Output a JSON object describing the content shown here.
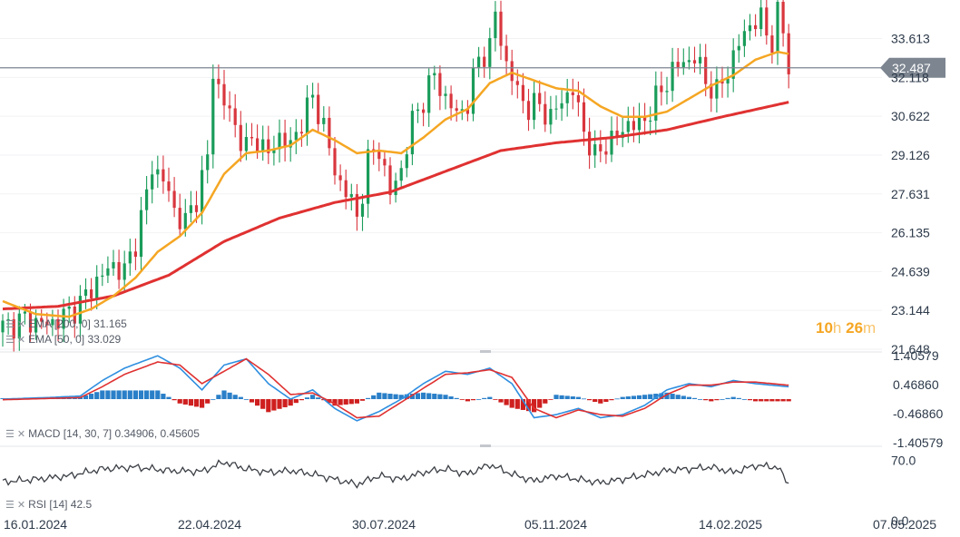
{
  "price_axis": [
    "33.613",
    "32.118",
    "30.622",
    "29.126",
    "27.631",
    "26.135",
    "24.639",
    "23.144",
    "21.648"
  ],
  "current_price": "32.487",
  "macd_axis": [
    "1.40579",
    "0.46860",
    "-0.46860",
    "-1.40579"
  ],
  "rsi_axis": [
    "70.0",
    "0.0"
  ],
  "x_labels": [
    "16.01.2024",
    "22.04.2024",
    "30.07.2024",
    "05.11.2024",
    "14.02.2025",
    "07.05.2025"
  ],
  "legend": {
    "ema200": "EMA [200, 0] 31.165",
    "ema50": "EMA [50, 0] 33.029",
    "macd": "MACD [14, 30, 7] 0.34906,  0.45605",
    "rsi": "RSI [14] 42.5"
  },
  "timer": {
    "hours": "10",
    "h": "h",
    "minutes": "26",
    "m": "m"
  },
  "colors": {
    "ema50": "#f5a623",
    "ema200": "#e03131",
    "bull": "#1a9c5a",
    "bear": "#d9363e",
    "macd_line": "#2f8fe0",
    "signal_line": "#e03131",
    "hist_pos": "#2a7fc8",
    "hist_neg": "#cf1f1f",
    "price_tag": "#7c8590"
  },
  "chart_data": {
    "type": "line",
    "x_ticks": [
      "16.01.2024",
      "22.04.2024",
      "30.07.2024",
      "05.11.2024",
      "14.02.2025",
      "07.05.2025"
    ],
    "price_panel": {
      "ylim": [
        21.648,
        35.1
      ],
      "ticks": [
        33.613,
        32.118,
        30.622,
        29.126,
        27.631,
        26.135,
        24.639,
        23.144,
        21.648
      ],
      "current": 32.487,
      "candle_close_path": [
        [
          0,
          22.5
        ],
        [
          4,
          22.8
        ],
        [
          8,
          22.6
        ],
        [
          11,
          22.9
        ],
        [
          14,
          23.4
        ],
        [
          17,
          24.3
        ],
        [
          20,
          24.9
        ],
        [
          22,
          24.6
        ],
        [
          24,
          25.8
        ],
        [
          26,
          27.6
        ],
        [
          27,
          28.7
        ],
        [
          29,
          28.2
        ],
        [
          31,
          27.0
        ],
        [
          33,
          26.5
        ],
        [
          35,
          27.5
        ],
        [
          37,
          29.0
        ],
        [
          38,
          32.3
        ],
        [
          40,
          31.2
        ],
        [
          42,
          30.2
        ],
        [
          44,
          29.4
        ],
        [
          46,
          29.8
        ],
        [
          48,
          29.1
        ],
        [
          50,
          29.9
        ],
        [
          52,
          29.4
        ],
        [
          54,
          30.5
        ],
        [
          56,
          31.3
        ],
        [
          58,
          30.3
        ],
        [
          60,
          28.4
        ],
        [
          62,
          27.8
        ],
        [
          64,
          26.7
        ],
        [
          66,
          28.9
        ],
        [
          68,
          29.4
        ],
        [
          70,
          27.6
        ],
        [
          72,
          28.6
        ],
        [
          74,
          30.4
        ],
        [
          76,
          31.3
        ],
        [
          78,
          32.2
        ],
        [
          80,
          31.3
        ],
        [
          82,
          30.7
        ],
        [
          84,
          31.1
        ],
        [
          86,
          32.9
        ],
        [
          88,
          33.2
        ],
        [
          89,
          34.6
        ],
        [
          91,
          32.6
        ],
        [
          93,
          31.6
        ],
        [
          95,
          30.9
        ],
        [
          97,
          31.1
        ],
        [
          99,
          30.5
        ],
        [
          101,
          31.3
        ],
        [
          103,
          31.6
        ],
        [
          105,
          30.1
        ],
        [
          107,
          29.0
        ],
        [
          109,
          29.6
        ],
        [
          111,
          29.8
        ],
        [
          113,
          30.4
        ],
        [
          115,
          30.2
        ],
        [
          117,
          30.9
        ],
        [
          119,
          31.6
        ],
        [
          121,
          32.4
        ],
        [
          123,
          32.7
        ],
        [
          125,
          32.9
        ],
        [
          127,
          32.0
        ],
        [
          129,
          31.5
        ],
        [
          131,
          32.4
        ],
        [
          133,
          33.4
        ],
        [
          135,
          34.2
        ],
        [
          137,
          34.3
        ],
        [
          139,
          33.5
        ],
        [
          140,
          34.5
        ],
        [
          141,
          33.9
        ],
        [
          142,
          32.5
        ]
      ],
      "ema50": [
        [
          0,
          23.5
        ],
        [
          6,
          23.0
        ],
        [
          12,
          22.9
        ],
        [
          16,
          23.2
        ],
        [
          20,
          23.7
        ],
        [
          24,
          24.4
        ],
        [
          28,
          25.4
        ],
        [
          32,
          26.0
        ],
        [
          36,
          26.9
        ],
        [
          40,
          28.4
        ],
        [
          44,
          29.2
        ],
        [
          48,
          29.3
        ],
        [
          52,
          29.5
        ],
        [
          56,
          30.1
        ],
        [
          60,
          29.7
        ],
        [
          64,
          29.2
        ],
        [
          68,
          29.3
        ],
        [
          72,
          29.2
        ],
        [
          76,
          29.8
        ],
        [
          80,
          30.5
        ],
        [
          84,
          30.9
        ],
        [
          88,
          31.9
        ],
        [
          92,
          32.3
        ],
        [
          96,
          32.0
        ],
        [
          100,
          31.7
        ],
        [
          104,
          31.6
        ],
        [
          108,
          31.0
        ],
        [
          112,
          30.6
        ],
        [
          116,
          30.6
        ],
        [
          120,
          30.8
        ],
        [
          124,
          31.3
        ],
        [
          128,
          31.8
        ],
        [
          132,
          32.2
        ],
        [
          136,
          32.8
        ],
        [
          140,
          33.1
        ],
        [
          142,
          33.029
        ]
      ],
      "ema200": [
        [
          0,
          23.2
        ],
        [
          10,
          23.3
        ],
        [
          20,
          23.7
        ],
        [
          30,
          24.5
        ],
        [
          40,
          25.8
        ],
        [
          50,
          26.7
        ],
        [
          60,
          27.3
        ],
        [
          70,
          27.7
        ],
        [
          80,
          28.5
        ],
        [
          90,
          29.3
        ],
        [
          100,
          29.6
        ],
        [
          110,
          29.8
        ],
        [
          120,
          30.1
        ],
        [
          130,
          30.6
        ],
        [
          142,
          31.165
        ]
      ]
    },
    "macd_panel": {
      "ylim": [
        -1.40579,
        1.40579
      ],
      "ticks": [
        1.40579,
        0.4686,
        -0.4686,
        -1.40579
      ],
      "macd": [
        [
          0,
          0.0
        ],
        [
          8,
          0.05
        ],
        [
          14,
          0.1
        ],
        [
          18,
          0.6
        ],
        [
          22,
          1.0
        ],
        [
          28,
          1.4
        ],
        [
          32,
          1.0
        ],
        [
          36,
          0.3
        ],
        [
          40,
          1.1
        ],
        [
          44,
          1.3
        ],
        [
          48,
          0.5
        ],
        [
          52,
          0.0
        ],
        [
          56,
          0.3
        ],
        [
          60,
          -0.3
        ],
        [
          64,
          -0.7
        ],
        [
          68,
          -0.4
        ],
        [
          72,
          0.0
        ],
        [
          76,
          0.5
        ],
        [
          80,
          0.9
        ],
        [
          84,
          0.8
        ],
        [
          88,
          1.0
        ],
        [
          92,
          0.5
        ],
        [
          96,
          -0.6
        ],
        [
          100,
          -0.5
        ],
        [
          104,
          -0.3
        ],
        [
          108,
          -0.6
        ],
        [
          112,
          -0.5
        ],
        [
          116,
          -0.2
        ],
        [
          120,
          0.3
        ],
        [
          124,
          0.5
        ],
        [
          128,
          0.4
        ],
        [
          132,
          0.6
        ],
        [
          136,
          0.5
        ],
        [
          142,
          0.4
        ]
      ],
      "signal": [
        [
          0,
          -0.02
        ],
        [
          8,
          0.02
        ],
        [
          14,
          0.05
        ],
        [
          18,
          0.4
        ],
        [
          22,
          0.8
        ],
        [
          28,
          1.2
        ],
        [
          32,
          1.1
        ],
        [
          36,
          0.5
        ],
        [
          40,
          0.9
        ],
        [
          44,
          1.3
        ],
        [
          48,
          0.8
        ],
        [
          52,
          0.15
        ],
        [
          56,
          0.2
        ],
        [
          60,
          -0.15
        ],
        [
          64,
          -0.6
        ],
        [
          68,
          -0.55
        ],
        [
          72,
          -0.1
        ],
        [
          76,
          0.35
        ],
        [
          80,
          0.8
        ],
        [
          84,
          0.85
        ],
        [
          88,
          0.95
        ],
        [
          92,
          0.7
        ],
        [
          96,
          -0.3
        ],
        [
          100,
          -0.6
        ],
        [
          104,
          -0.35
        ],
        [
          108,
          -0.5
        ],
        [
          112,
          -0.55
        ],
        [
          116,
          -0.3
        ],
        [
          120,
          0.15
        ],
        [
          124,
          0.45
        ],
        [
          128,
          0.45
        ],
        [
          132,
          0.55
        ],
        [
          136,
          0.55
        ],
        [
          142,
          0.45
        ]
      ]
    },
    "rsi_panel": {
      "ylim": [
        0,
        82
      ],
      "ticks": [
        70.0,
        0.0
      ],
      "rsi": [
        [
          0,
          45
        ],
        [
          6,
          48
        ],
        [
          12,
          52
        ],
        [
          18,
          60
        ],
        [
          24,
          62
        ],
        [
          30,
          58
        ],
        [
          36,
          57
        ],
        [
          40,
          68
        ],
        [
          44,
          60
        ],
        [
          48,
          56
        ],
        [
          52,
          58
        ],
        [
          56,
          54
        ],
        [
          60,
          48
        ],
        [
          64,
          42
        ],
        [
          68,
          52
        ],
        [
          72,
          48
        ],
        [
          76,
          56
        ],
        [
          80,
          60
        ],
        [
          84,
          54
        ],
        [
          88,
          65
        ],
        [
          92,
          54
        ],
        [
          96,
          46
        ],
        [
          100,
          52
        ],
        [
          104,
          48
        ],
        [
          108,
          44
        ],
        [
          112,
          48
        ],
        [
          116,
          53
        ],
        [
          120,
          58
        ],
        [
          124,
          60
        ],
        [
          128,
          62
        ],
        [
          132,
          56
        ],
        [
          136,
          64
        ],
        [
          140,
          62
        ],
        [
          142,
          42.5
        ]
      ]
    }
  }
}
